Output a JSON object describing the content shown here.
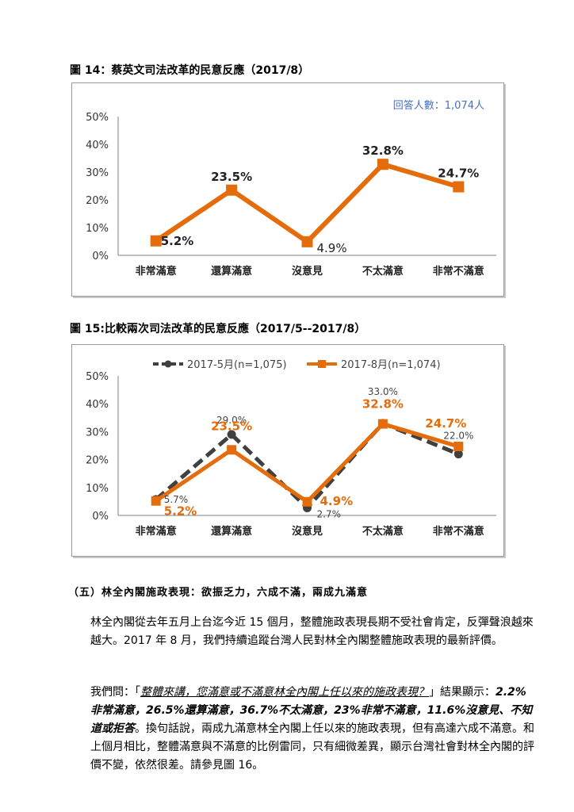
{
  "fig14": {
    "caption": "圖 14：蔡英文司法改革的民意反應（2017/8）",
    "note": "回答人數：1,074人"
  },
  "fig15": {
    "caption": "圖 15:比較兩次司法改革的民意反應（2017/5--2017/8）"
  },
  "chart_data": [
    {
      "type": "line",
      "categories": [
        "非常滿意",
        "還算滿意",
        "沒意見",
        "不太滿意",
        "非常不滿意"
      ],
      "series": [
        {
          "values": [
            5.2,
            23.5,
            4.9,
            32.8,
            24.7
          ],
          "color": "#e46c0a"
        }
      ],
      "data_labels": [
        "5.2%",
        "23.5%",
        "4.9%",
        "32.8%",
        "24.7%"
      ],
      "yticks": [
        "0%",
        "10%",
        "20%",
        "30%",
        "40%",
        "50%"
      ],
      "ylim": [
        0,
        50
      ],
      "grid": false
    },
    {
      "type": "line",
      "categories": [
        "非常滿意",
        "還算滿意",
        "沒意見",
        "不太滿意",
        "非常不滿意"
      ],
      "series": [
        {
          "name": "2017-5月(n=1,075)",
          "values": [
            5.7,
            29.0,
            2.7,
            33.0,
            22.0
          ],
          "color": "#404040",
          "style": "dashed",
          "labels": [
            "5.7%",
            "29.0%",
            "2.7%",
            "33.0%",
            "22.0%"
          ]
        },
        {
          "name": "2017-8月(n=1,074)",
          "values": [
            5.2,
            23.5,
            4.9,
            32.8,
            24.7
          ],
          "color": "#e46c0a",
          "style": "solid",
          "labels": [
            "5.2%",
            "23.5%",
            "4.9%",
            "32.8%",
            "24.7%"
          ]
        }
      ],
      "yticks": [
        "0%",
        "10%",
        "20%",
        "30%",
        "40%",
        "50%"
      ],
      "ylim": [
        0,
        50
      ],
      "legend": "top",
      "grid": false
    }
  ],
  "section": {
    "heading": "（五）林全內閣施政表現：欲振乏力，六成不滿，兩成九滿意",
    "p1": "林全內閣從去年五月上台迄今近 15 個月，整體施政表現長期不受社會肯定，反彈聲浪越來越大。2017 年 8 月，我們持續追蹤台灣人民對林全內閣整體施政表現的最新評價。",
    "p2_a": "我們問：「",
    "p2_q": "整體來講，您滿意或不滿意林全內閣上任以來的施政表現？",
    "p2_b": "」結果顯示：",
    "p2_h": "2.2%非常滿意，26.5%還算滿意，36.7%不太滿意，23%非常不滿意，11.6%沒意見、不知道或拒答",
    "p2_c": "。換句話說，兩成九滿意林全內閣上任以來的施政表現，但有高達六成不滿意。和上個月相比，整體滿意與不滿意的比例雷同，只有細微差異，顯示台灣社會對林全內閣的評價不變，依然很差。請參見圖 16。"
  }
}
